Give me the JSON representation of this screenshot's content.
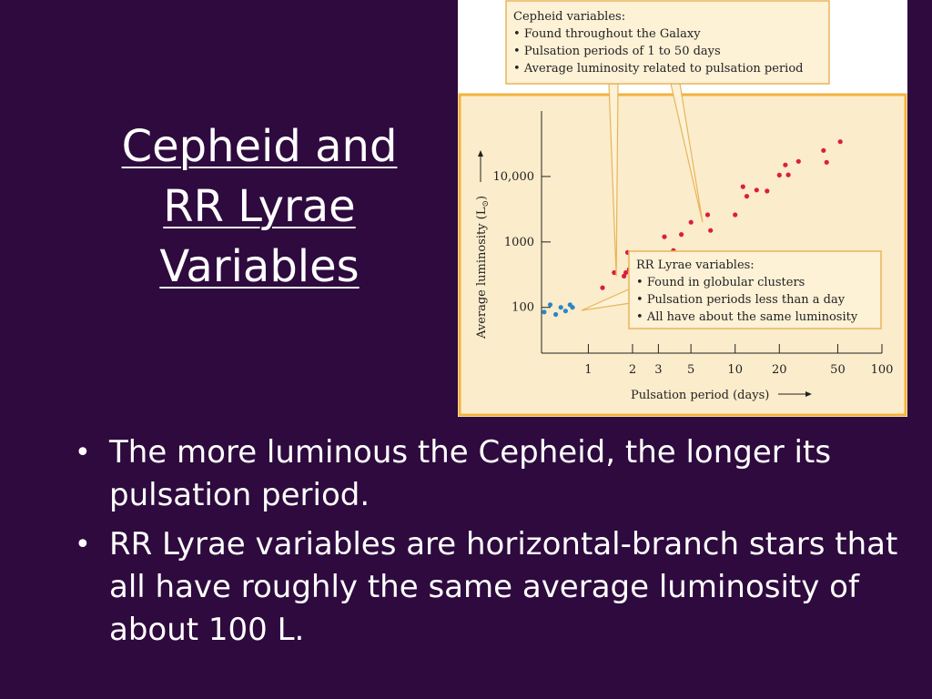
{
  "slide": {
    "title_lines": [
      "Cepheid and",
      "RR Lyrae",
      "Variables"
    ],
    "bullets": [
      "The more luminous the Cepheid, the longer its pulsation period.",
      "RR Lyrae variables are horizontal-branch stars that all have roughly the same average luminosity of about 100 L."
    ],
    "bullet_glyph": "•"
  },
  "colors": {
    "background": "#2e0a3e",
    "panel": "#fbeccb",
    "panel_border": "#f3b23c",
    "callout_fill": "#fdf1d6",
    "callout_border": "#e7b55a",
    "cepheid": "#d91f3e",
    "rr_lyrae": "#2b86c9"
  },
  "chart_data": {
    "type": "scatter",
    "title": "",
    "xlabel": "Pulsation period (days)",
    "ylabel": "Average luminosity (L",
    "ylabel_sub": "⊙",
    "x_scale": "log",
    "y_scale": "log",
    "xlim": [
      0.48,
      100
    ],
    "ylim": [
      20,
      100000
    ],
    "x_ticks": [
      1,
      2,
      3,
      5,
      10,
      20,
      50,
      100
    ],
    "x_tick_labels": [
      "1",
      "2",
      "3",
      "5",
      "10",
      "20",
      "50",
      "100"
    ],
    "y_ticks": [
      100,
      1000,
      10000
    ],
    "y_tick_labels": [
      "100",
      "1000",
      "10,000"
    ],
    "grid": false,
    "series": [
      {
        "key": "cepheid",
        "x": [
          1.25,
          1.5,
          1.75,
          1.8,
          1.85,
          1.9,
          2.5,
          3.3,
          3.8,
          4.3,
          5.0,
          6.5,
          6.8,
          10.0,
          11.3,
          12.0,
          14.0,
          16.5,
          20.0,
          22.0,
          23.0,
          27.0,
          40.0,
          42.0,
          52.0
        ],
        "y": [
          200,
          340,
          300,
          340,
          690,
          380,
          580,
          1200,
          740,
          1300,
          2000,
          2600,
          1500,
          2600,
          7000,
          5000,
          6200,
          6000,
          10500,
          15000,
          10600,
          17000,
          25000,
          16500,
          34000
        ]
      },
      {
        "key": "rr_lyrae",
        "x": [
          0.5,
          0.55,
          0.6,
          0.65,
          0.7,
          0.75,
          0.78
        ],
        "y": [
          85,
          110,
          78,
          100,
          88,
          110,
          100
        ]
      }
    ],
    "annotations": [
      {
        "key": "cepheid",
        "heading": "Cepheid variables:",
        "items": [
          "Found throughout the Galaxy",
          "Pulsation periods of 1 to 50 days",
          "Average luminosity related to pulsation period"
        ]
      },
      {
        "key": "rr_lyrae",
        "heading": "RR Lyrae variables:",
        "items": [
          "Found in globular clusters",
          "Pulsation periods less than a day",
          "All have about the same luminosity"
        ]
      }
    ]
  }
}
